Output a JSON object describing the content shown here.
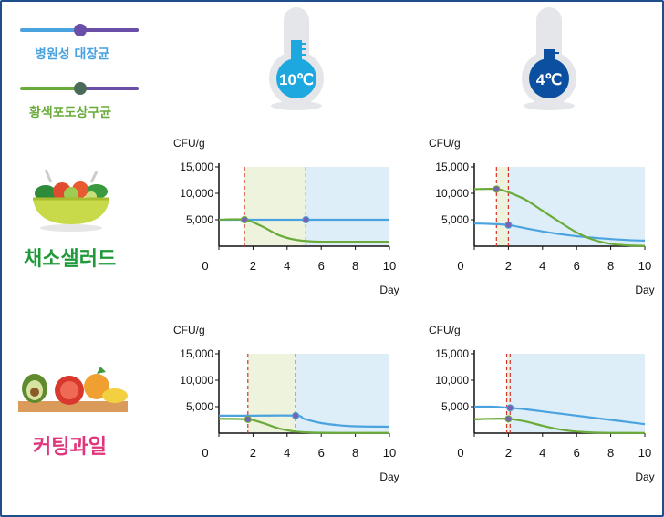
{
  "legend": {
    "items": [
      {
        "label": "병원성 대장균",
        "color": "#4aa3df"
      },
      {
        "label": "황색포도상구균",
        "color": "#6aab3a"
      }
    ]
  },
  "thermometers": [
    {
      "label": "10℃",
      "color": "#1ea8e0"
    },
    {
      "label": "4℃",
      "color": "#0a4fa0"
    }
  ],
  "rows": [
    {
      "label": "채소샐러드",
      "color": "#1f9a3a"
    },
    {
      "label": "커팅과일",
      "color": "#e0357c"
    }
  ],
  "colors": {
    "ecoli": "#4aa3df",
    "staph": "#6aab3a",
    "marker": "#7a62b0",
    "phase_green": "#eef3de",
    "phase_blue": "#ddeef9",
    "dash": "#d9312b"
  },
  "chart_data": [
    {
      "type": "line",
      "panel": "채소샐러드 10℃",
      "ylabel": "CFU/g",
      "xlabel": "Day",
      "x_ticks": [
        0,
        2,
        4,
        6,
        8,
        10
      ],
      "y_ticks": [
        5000,
        10000,
        15000
      ],
      "y_tick_labels": [
        "5,000",
        "10,000",
        "15,000"
      ],
      "xlim": [
        0,
        10
      ],
      "ylim": [
        0,
        15000
      ],
      "dashed_x": [
        1.5,
        5.1
      ],
      "series": [
        {
          "key": "ecoli",
          "points": [
            [
              0,
              5000
            ],
            [
              1.5,
              5000
            ],
            [
              5.1,
              5000
            ],
            [
              10,
              5000
            ]
          ],
          "marker_x": [
            5.1
          ]
        },
        {
          "key": "staph",
          "points": [
            [
              0,
              5000
            ],
            [
              1.5,
              5000
            ],
            [
              2.5,
              3800
            ],
            [
              3.5,
              2100
            ],
            [
              4.5,
              1200
            ],
            [
              5.5,
              900
            ],
            [
              7,
              850
            ],
            [
              10,
              850
            ]
          ],
          "marker_x": [
            1.5
          ]
        }
      ]
    },
    {
      "type": "line",
      "panel": "채소샐러드 4℃",
      "ylabel": "CFU/g",
      "xlabel": "Day",
      "x_ticks": [
        0,
        2,
        4,
        6,
        8,
        10
      ],
      "y_ticks": [
        5000,
        10000,
        15000
      ],
      "y_tick_labels": [
        "5,000",
        "10,000",
        "15,000"
      ],
      "xlim": [
        0,
        10
      ],
      "ylim": [
        0,
        15000
      ],
      "dashed_x": [
        1.3,
        2.0
      ],
      "series": [
        {
          "key": "ecoli",
          "points": [
            [
              0,
              4300
            ],
            [
              1,
              4200
            ],
            [
              2,
              4000
            ],
            [
              3,
              3400
            ],
            [
              4,
              2800
            ],
            [
              5,
              2300
            ],
            [
              6,
              1900
            ],
            [
              7,
              1600
            ],
            [
              8,
              1350
            ],
            [
              9,
              1150
            ],
            [
              10,
              1050
            ]
          ],
          "marker_x": [
            2.0
          ]
        },
        {
          "key": "staph",
          "points": [
            [
              0,
              10800
            ],
            [
              1.3,
              10800
            ],
            [
              2,
              10200
            ],
            [
              3,
              8800
            ],
            [
              4,
              6700
            ],
            [
              5,
              4600
            ],
            [
              6,
              2600
            ],
            [
              7,
              1200
            ],
            [
              8,
              450
            ],
            [
              9,
              150
            ],
            [
              10,
              50
            ]
          ],
          "marker_x": [
            1.3
          ]
        }
      ]
    },
    {
      "type": "line",
      "panel": "커팅과일 10℃",
      "ylabel": "CFU/g",
      "xlabel": "Day",
      "x_ticks": [
        0,
        2,
        4,
        6,
        8,
        10
      ],
      "y_ticks": [
        5000,
        10000,
        15000
      ],
      "y_tick_labels": [
        "5,000",
        "10,000",
        "15,000"
      ],
      "xlim": [
        0,
        10
      ],
      "ylim": [
        0,
        15000
      ],
      "dashed_x": [
        1.7,
        4.5
      ],
      "series": [
        {
          "key": "ecoli",
          "points": [
            [
              0,
              3300
            ],
            [
              1.7,
              3300
            ],
            [
              4.5,
              3300
            ],
            [
              5,
              2700
            ],
            [
              6,
              1900
            ],
            [
              7,
              1500
            ],
            [
              8,
              1300
            ],
            [
              10,
              1200
            ]
          ],
          "marker_x": [
            4.5
          ]
        },
        {
          "key": "staph",
          "points": [
            [
              0,
              2700
            ],
            [
              1.7,
              2600
            ],
            [
              2.5,
              2000
            ],
            [
              3.5,
              900
            ],
            [
              4.5,
              300
            ],
            [
              5.5,
              100
            ],
            [
              7,
              50
            ],
            [
              10,
              50
            ]
          ],
          "marker_x": [
            1.7
          ]
        }
      ]
    },
    {
      "type": "line",
      "panel": "커팅과일 4℃",
      "ylabel": "CFU/g",
      "xlabel": "Day",
      "x_ticks": [
        0,
        2,
        4,
        6,
        8,
        10
      ],
      "y_ticks": [
        5000,
        10000,
        15000
      ],
      "y_tick_labels": [
        "5,000",
        "10,000",
        "15,000"
      ],
      "xlim": [
        0,
        10
      ],
      "ylim": [
        0,
        15000
      ],
      "dashed_x": [
        1.9,
        2.1
      ],
      "series": [
        {
          "key": "ecoli",
          "points": [
            [
              0,
              5000
            ],
            [
              1,
              5000
            ],
            [
              2,
              4800
            ],
            [
              3,
              4500
            ],
            [
              4,
              4100
            ],
            [
              5,
              3700
            ],
            [
              6,
              3300
            ],
            [
              7,
              2900
            ],
            [
              8,
              2500
            ],
            [
              9,
              2100
            ],
            [
              10,
              1700
            ]
          ],
          "marker_x": [
            2.1
          ]
        },
        {
          "key": "staph",
          "points": [
            [
              0,
              2600
            ],
            [
              1,
              2700
            ],
            [
              2,
              2700
            ],
            [
              3,
              2200
            ],
            [
              4,
              1400
            ],
            [
              5,
              700
            ],
            [
              6,
              300
            ],
            [
              7,
              120
            ],
            [
              8,
              50
            ],
            [
              10,
              30
            ]
          ],
          "marker_x": [
            2.0
          ]
        }
      ]
    }
  ]
}
